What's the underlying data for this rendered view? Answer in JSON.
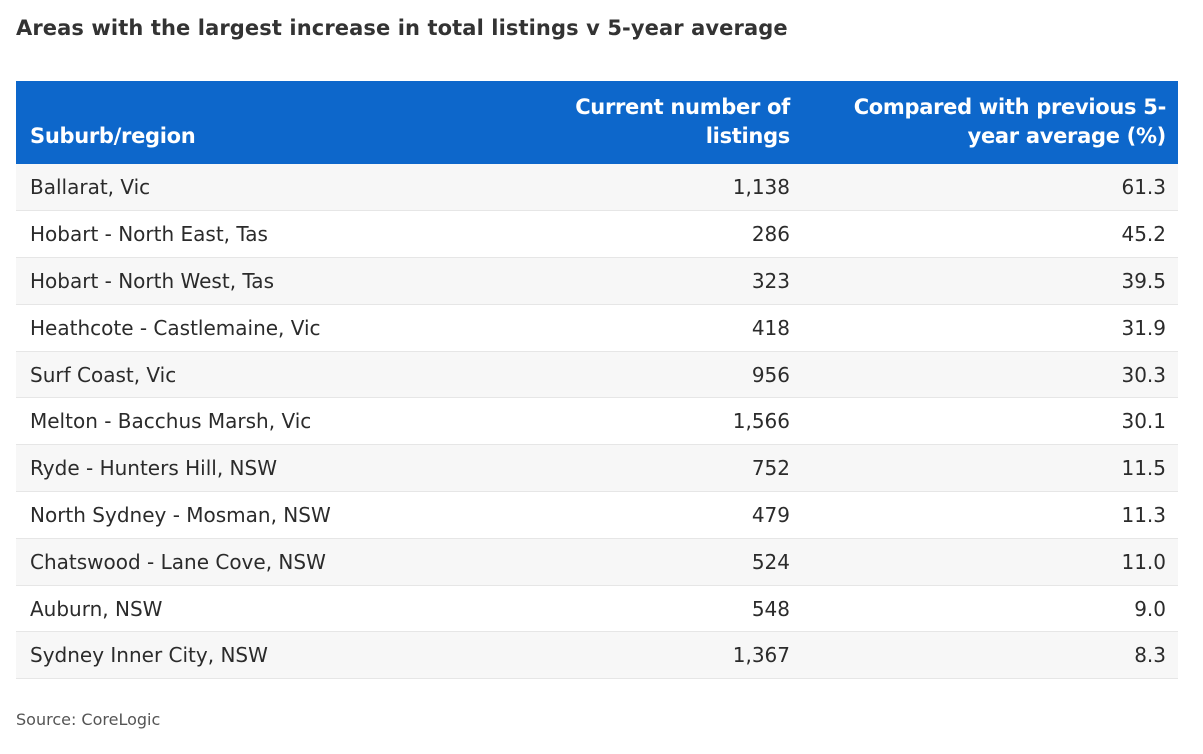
{
  "title": "Areas with the largest increase in total listings v 5-year average",
  "source": "Source: CoreLogic",
  "colors": {
    "header_bg": "#0d67cb",
    "header_text": "#ffffff",
    "row_alt": "#f7f7f7"
  },
  "chart_data": {
    "type": "table",
    "title": "Areas with the largest increase in total listings v 5-year average",
    "columns": [
      "Suburb/region",
      "Current number of listings",
      "Compared with previous 5-year average (%)"
    ],
    "header": {
      "col1": "Suburb/region",
      "col2_line1": "Current number of",
      "col2_line2": "listings",
      "col3_line1": "Compared with previous 5-",
      "col3_line2": "year average (%)"
    },
    "rows": [
      {
        "region": "Ballarat, Vic",
        "listings": "1,138",
        "change": "61.3"
      },
      {
        "region": "Hobart - North East, Tas",
        "listings": "286",
        "change": "45.2"
      },
      {
        "region": "Hobart - North West, Tas",
        "listings": "323",
        "change": "39.5"
      },
      {
        "region": "Heathcote - Castlemaine, Vic",
        "listings": "418",
        "change": "31.9"
      },
      {
        "region": "Surf Coast, Vic",
        "listings": "956",
        "change": "30.3"
      },
      {
        "region": "Melton - Bacchus Marsh, Vic",
        "listings": "1,566",
        "change": "30.1"
      },
      {
        "region": "Ryde - Hunters Hill, NSW",
        "listings": "752",
        "change": "11.5"
      },
      {
        "region": "North Sydney - Mosman, NSW",
        "listings": "479",
        "change": "11.3"
      },
      {
        "region": "Chatswood - Lane Cove, NSW",
        "listings": "524",
        "change": "11.0"
      },
      {
        "region": "Auburn, NSW",
        "listings": "548",
        "change": "9.0"
      },
      {
        "region": "Sydney Inner City, NSW",
        "listings": "1,367",
        "change": "8.3"
      }
    ]
  }
}
